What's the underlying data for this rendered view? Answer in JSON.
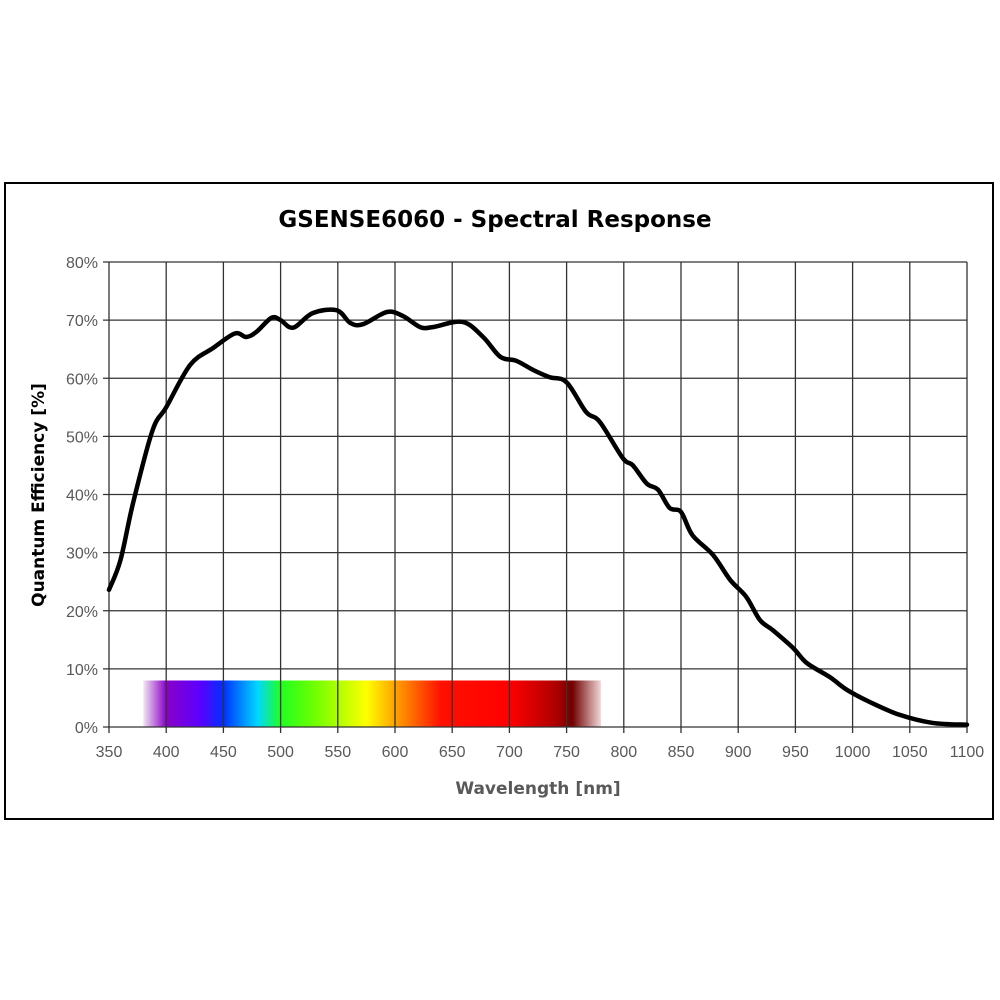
{
  "chart_data": {
    "type": "line",
    "title": "GSENSE6060 - Spectral Response",
    "xlabel": "Wavelength [nm]",
    "ylabel": "Quantum Efficiency [%]",
    "xlim": [
      350,
      1100
    ],
    "ylim": [
      0,
      80
    ],
    "grid": true,
    "xticks": [
      350,
      400,
      450,
      500,
      550,
      600,
      650,
      700,
      750,
      800,
      850,
      900,
      950,
      1000,
      1050,
      1100
    ],
    "xtick_labels": [
      "350",
      "400",
      "450",
      "500",
      "550",
      "600",
      "650",
      "700",
      "750",
      "800",
      "850",
      "900",
      "950",
      "1000",
      "1050",
      "1100"
    ],
    "yticks": [
      0,
      10,
      20,
      30,
      40,
      50,
      60,
      70,
      80
    ],
    "ytick_labels": [
      "0%",
      "10%",
      "20%",
      "30%",
      "40%",
      "50%",
      "60%",
      "70%",
      "80%"
    ],
    "series": [
      {
        "name": "QE",
        "color": "#000000",
        "x": [
          350,
          360,
          371,
          388,
          400,
          421,
          441,
          460,
          470,
          479,
          492,
          500,
          511,
          528,
          549,
          561,
          572,
          593,
          607,
          622,
          633,
          659,
          677,
          692,
          706,
          721,
          735,
          750,
          767,
          779,
          799,
          808,
          820,
          830,
          840,
          850,
          860,
          878,
          893,
          907,
          919,
          930,
          948,
          960,
          980,
          995,
          1015,
          1041,
          1070,
          1100
        ],
        "y": [
          23.6,
          28.7,
          38.5,
          51,
          55,
          62.3,
          65.2,
          67.7,
          67.1,
          68,
          70.4,
          70,
          68.7,
          71.2,
          71.7,
          69.5,
          69.3,
          71.4,
          70.7,
          68.8,
          68.8,
          69.7,
          67.1,
          63.7,
          63,
          61.4,
          60.2,
          59.3,
          54.2,
          52.5,
          46.3,
          45,
          41.9,
          40.8,
          37.7,
          37,
          33,
          29.6,
          25.3,
          22.4,
          18.4,
          16.7,
          13.6,
          11,
          8.6,
          6.4,
          4.3,
          2.1,
          0.7,
          0.4
        ]
      }
    ],
    "annotation_band": {
      "name": "visible-spectrum",
      "x_range": [
        380,
        780
      ],
      "y_range": [
        0,
        8
      ],
      "stops": [
        {
          "nm": 380,
          "color": "#f3e6f3"
        },
        {
          "nm": 400,
          "color": "#8a00c8"
        },
        {
          "nm": 430,
          "color": "#5a00ff"
        },
        {
          "nm": 450,
          "color": "#0030ff"
        },
        {
          "nm": 480,
          "color": "#00d8ff"
        },
        {
          "nm": 500,
          "color": "#20ff20"
        },
        {
          "nm": 530,
          "color": "#70ff00"
        },
        {
          "nm": 575,
          "color": "#ffff00"
        },
        {
          "nm": 605,
          "color": "#ff9000"
        },
        {
          "nm": 640,
          "color": "#ff1000"
        },
        {
          "nm": 700,
          "color": "#ff0000"
        },
        {
          "nm": 740,
          "color": "#b00000"
        },
        {
          "nm": 755,
          "color": "#700000"
        },
        {
          "nm": 780,
          "color": "#f0d8d8"
        }
      ]
    }
  }
}
